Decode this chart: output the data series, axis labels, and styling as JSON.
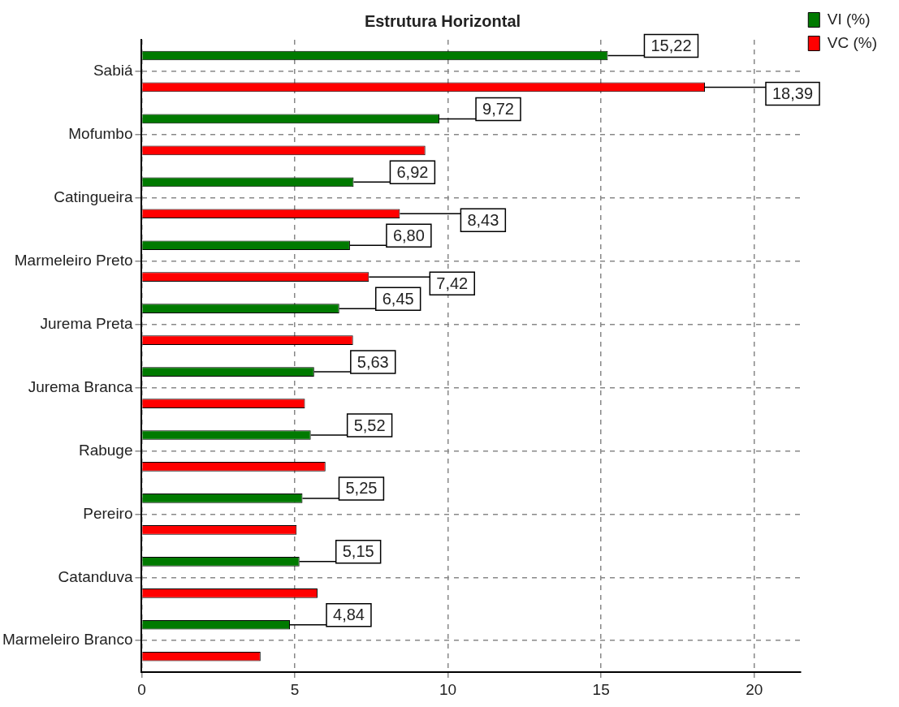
{
  "chart_data": {
    "type": "bar",
    "orientation": "horizontal",
    "title": "Estrutura Horizontal",
    "categories": [
      "Sabiá",
      "Mofumbo",
      "Catingueira",
      "Marmeleiro Preto",
      "Jurema Preta",
      "Jurema Branca",
      "Rabuge",
      "Pereiro",
      "Catanduva",
      "Marmeleiro Branco"
    ],
    "series": [
      {
        "name": "VI (%)",
        "color": "#007a00",
        "values": [
          15.22,
          9.72,
          6.92,
          6.8,
          6.45,
          5.63,
          5.52,
          5.25,
          5.15,
          4.84
        ],
        "value_labels": [
          "15,22",
          "9,72",
          "6,92",
          "6,80",
          "6,45",
          "5,63",
          "5,52",
          "5,25",
          "5,15",
          "4,84"
        ]
      },
      {
        "name": "VC (%)",
        "color": "#ff0000",
        "values": [
          18.39,
          9.26,
          8.43,
          7.42,
          6.9,
          5.33,
          6.0,
          5.06,
          5.74,
          3.88
        ],
        "value_labels": [
          "18,39",
          null,
          "8,43",
          "7,42",
          null,
          null,
          null,
          null,
          null,
          null
        ]
      }
    ],
    "xlim": [
      0,
      21.5
    ],
    "xticks": [
      0,
      5,
      10,
      15,
      20
    ],
    "grid": true,
    "legend": "top right"
  }
}
